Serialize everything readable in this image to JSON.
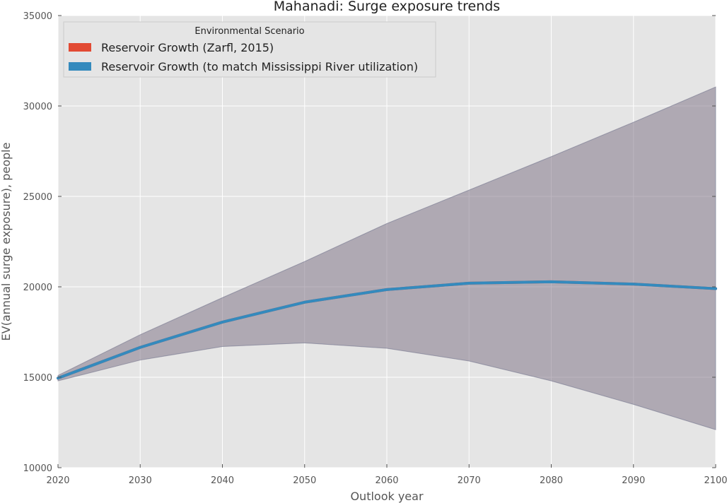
{
  "chart_data": {
    "type": "line",
    "title": "Mahanadi: Surge exposure trends",
    "xlabel": "Outlook year",
    "ylabel": "EV(annual surge exposure), people",
    "xlim": [
      2020,
      2100
    ],
    "ylim": [
      10000,
      35000
    ],
    "x_ticks": [
      2020,
      2030,
      2040,
      2050,
      2060,
      2070,
      2080,
      2090,
      2100
    ],
    "y_ticks": [
      10000,
      15000,
      20000,
      25000,
      30000,
      35000
    ],
    "grid": true,
    "legend": {
      "title": "Environmental Scenario",
      "placement": "top-left",
      "entries": [
        {
          "label": "Reservoir Growth (Zarfl, 2015)",
          "color": "#E24A33"
        },
        {
          "label": "Reservoir Growth (to match Mississippi River utilization)",
          "color": "#348ABD"
        }
      ]
    },
    "x": [
      2020,
      2030,
      2040,
      2050,
      2060,
      2070,
      2080,
      2090,
      2100
    ],
    "series": [
      {
        "name": "Reservoir Growth (Zarfl, 2015)",
        "color": "#E24A33",
        "values": [
          14950,
          16650,
          18050,
          19150,
          19850,
          20200,
          20280,
          20150,
          19900
        ],
        "band_low": [
          14800,
          15950,
          16700,
          16900,
          16600,
          15900,
          14800,
          13500,
          12100
        ],
        "band_high": [
          15100,
          17350,
          19400,
          21400,
          23500,
          25350,
          27200,
          29100,
          31050
        ]
      },
      {
        "name": "Reservoir Growth (to match Mississippi River utilization)",
        "color": "#348ABD",
        "values": [
          14950,
          16650,
          18050,
          19150,
          19850,
          20200,
          20280,
          20150,
          19900
        ],
        "band_low": [
          14800,
          15950,
          16700,
          16900,
          16600,
          15900,
          14800,
          13500,
          12100
        ],
        "band_high": [
          15100,
          17350,
          19400,
          21400,
          23500,
          25350,
          27200,
          29100,
          31050
        ]
      }
    ],
    "colors": {
      "plot_background": "#E5E5E5",
      "grid": "#FFFFFF",
      "band_overlap": "#A99EAE"
    }
  }
}
